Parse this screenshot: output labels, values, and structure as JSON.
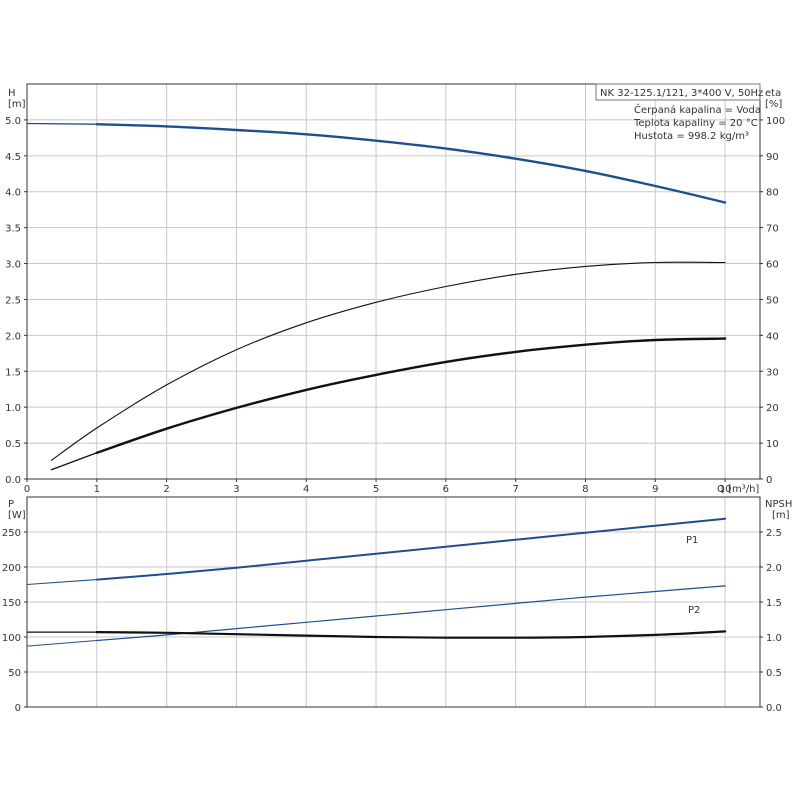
{
  "colors": {
    "blue": "#1f4e8c",
    "black": "#111111",
    "grid": "#c8c8c8",
    "frame": "#333333"
  },
  "info": {
    "title": "NK 32-125.1/121, 3*400 V, 50Hz",
    "lines": [
      "Čerpaná kapalina = Voda",
      "Teplota kapaliny = 20 °C",
      "Hustota = 998.2 kg/m³"
    ]
  },
  "chart_data": [
    {
      "type": "line",
      "ylabel_left": [
        "H",
        "[m]"
      ],
      "ylabel_right": [
        "eta",
        "[%]"
      ],
      "xlabel": "Q [m³/h]",
      "xlim": [
        0,
        10.5
      ],
      "ylim_left": [
        0,
        5.5
      ],
      "ylim_right": [
        0,
        110
      ],
      "xticks": [
        "0",
        "1",
        "2",
        "3",
        "4",
        "5",
        "6",
        "7",
        "8",
        "9",
        "10"
      ],
      "yticks_left": [
        "0.0",
        "0.5",
        "1.0",
        "1.5",
        "2.0",
        "2.5",
        "3.0",
        "3.5",
        "4.0",
        "4.5",
        "5.0"
      ],
      "yticks_right": [
        "0",
        "10",
        "20",
        "30",
        "40",
        "50",
        "60",
        "70",
        "80",
        "90",
        "100"
      ],
      "grid": true,
      "series": [
        {
          "key": "H",
          "axis": "left",
          "color": "blue",
          "width": 2.4,
          "segments": [
            {
              "x": [
                0,
                1
              ],
              "y": [
                4.95,
                4.94
              ]
            },
            {
              "x": [
                1,
                2,
                3,
                4,
                5,
                6,
                7,
                8,
                9,
                10
              ],
              "y": [
                4.94,
                4.91,
                4.86,
                4.8,
                4.71,
                4.6,
                4.46,
                4.29,
                4.08,
                3.85
              ]
            }
          ]
        },
        {
          "key": "eta-thin",
          "axis": "right",
          "color": "black",
          "width": 1.1,
          "segments": [
            {
              "x": [
                0.35,
                1,
                2,
                3,
                4,
                5,
                6,
                7,
                8,
                9,
                10
              ],
              "y": [
                5.2,
                14.2,
                26.2,
                36,
                43.5,
                49.2,
                53.6,
                57,
                59.2,
                60.3,
                60.3
              ]
            }
          ]
        },
        {
          "key": "eta-thick",
          "axis": "right",
          "color": "black",
          "width": 2.4,
          "segments": [
            {
              "x": [
                0.35,
                1
              ],
              "y": [
                2.6,
                7.3
              ]
            },
            {
              "x": [
                1,
                2,
                3,
                4,
                5,
                6,
                7,
                8,
                9,
                10
              ],
              "y": [
                7.3,
                14,
                19.8,
                24.8,
                29,
                32.6,
                35.4,
                37.4,
                38.7,
                39.1
              ]
            }
          ]
        }
      ]
    },
    {
      "type": "line",
      "ylabel_left": [
        "P",
        "[W]"
      ],
      "ylabel_right": [
        "NPSH",
        "[m]"
      ],
      "xlim": [
        0,
        10.5
      ],
      "ylim_left": [
        0,
        300
      ],
      "ylim_right": [
        0,
        3.0
      ],
      "yticks_left": [
        "0",
        "50",
        "100",
        "150",
        "200",
        "250"
      ],
      "yticks_right": [
        "0.0",
        "0.5",
        "1.0",
        "1.5",
        "2.0",
        "2.5"
      ],
      "grid": true,
      "series": [
        {
          "key": "P1",
          "name": "P1",
          "axis": "left",
          "color": "blue",
          "width": 2.0,
          "segments": [
            {
              "x": [
                0,
                1
              ],
              "y": [
                175,
                182
              ]
            },
            {
              "x": [
                1,
                2,
                3,
                4,
                5,
                6,
                7,
                8,
                9,
                10
              ],
              "y": [
                182,
                190,
                199,
                209,
                219,
                229,
                239,
                249,
                259,
                269
              ]
            }
          ]
        },
        {
          "key": "P2",
          "name": "P2",
          "axis": "left",
          "color": "blue",
          "width": 1.2,
          "segments": [
            {
              "x": [
                0,
                1
              ],
              "y": [
                87,
                95
              ]
            },
            {
              "x": [
                1,
                2,
                3,
                4,
                5,
                6,
                7,
                8,
                9,
                10
              ],
              "y": [
                95,
                103,
                112,
                121,
                130,
                139,
                148,
                157,
                165,
                173
              ]
            }
          ]
        },
        {
          "key": "NPSH",
          "axis": "right",
          "color": "black",
          "width": 2.2,
          "segments": [
            {
              "x": [
                0,
                1
              ],
              "y": [
                1.07,
                1.07
              ]
            },
            {
              "x": [
                1,
                2,
                3,
                4,
                5,
                6,
                7,
                8,
                9,
                10
              ],
              "y": [
                1.07,
                1.06,
                1.04,
                1.02,
                1.0,
                0.99,
                0.99,
                1.0,
                1.03,
                1.08
              ]
            }
          ]
        }
      ]
    }
  ]
}
